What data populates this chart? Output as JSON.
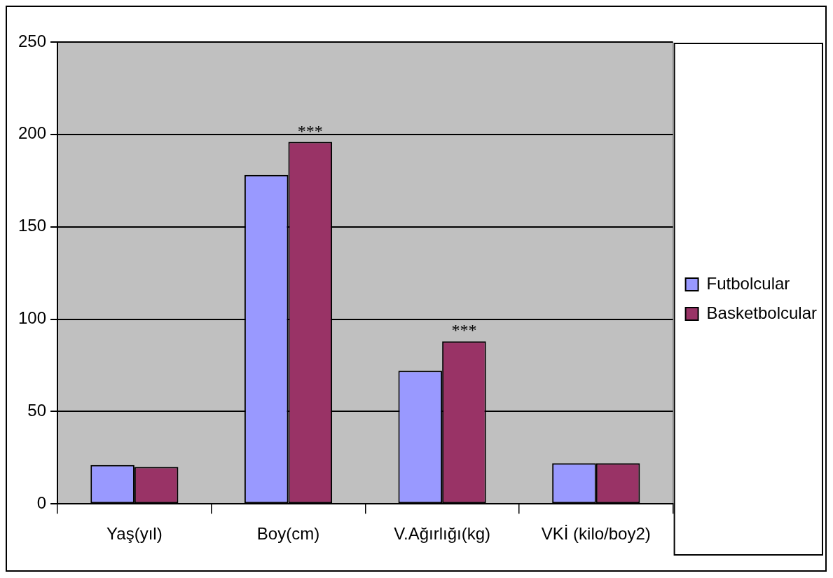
{
  "chart_data": {
    "type": "bar",
    "categories": [
      "Yaş(yıl)",
      "Boy(cm)",
      "V.Ağırlığı(kg)",
      "VKİ (kilo/boy2)"
    ],
    "series": [
      {
        "name": "Futbolcular",
        "color": "#9999ff",
        "values": [
          21,
          178,
          72,
          22
        ]
      },
      {
        "name": "Basketbolcular",
        "color": "#993366",
        "values": [
          20,
          196,
          88,
          22
        ]
      }
    ],
    "ylim": [
      0,
      250
    ],
    "yticks": [
      0,
      50,
      100,
      150,
      200,
      250
    ],
    "grid": "y",
    "legend": "right",
    "annotations": [
      {
        "text": "***",
        "x": "Boy(cm)",
        "y": 196
      },
      {
        "text": "***",
        "x": "V.Ağırlığı(kg)",
        "y": 88
      }
    ]
  }
}
